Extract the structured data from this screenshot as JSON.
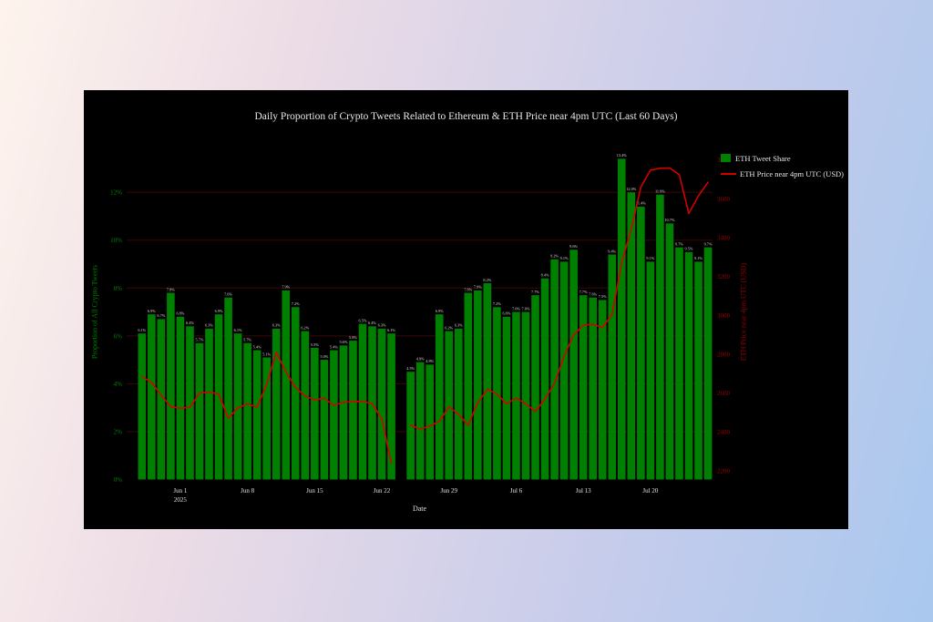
{
  "figure": {
    "background_panel_color": "#000000",
    "accent_green": "#008000",
    "accent_red_line": "#d40000",
    "accent_red_axis": "#9b0000",
    "grid_color": "#3a0606",
    "text_color": "#e8e8e8"
  },
  "chart_data": {
    "type": "bar+line",
    "title": "Daily Proportion of Crypto Tweets Related to Ethereum & ETH Price near 4pm UTC (Last 60 Days)",
    "xlabel": "Date",
    "ylabel_left": "Proportion of All Crypto Tweets",
    "ylabel_right": "ETH Price near 4pm UTC (USD)",
    "legend": [
      {
        "label": "ETH Tweet Share",
        "type": "bar",
        "color": "#008000"
      },
      {
        "label": "ETH Price near 4pm UTC (USD)",
        "type": "line",
        "color": "#d40000"
      }
    ],
    "legend_position": "top-right",
    "grid": {
      "on": true,
      "levels_pct": [
        2,
        4,
        6,
        8,
        10,
        12
      ]
    },
    "missing_day": "2025-06-24",
    "dates": [
      "2025-05-28",
      "2025-05-29",
      "2025-05-30",
      "2025-05-31",
      "2025-06-01",
      "2025-06-02",
      "2025-06-03",
      "2025-06-04",
      "2025-06-05",
      "2025-06-06",
      "2025-06-07",
      "2025-06-08",
      "2025-06-09",
      "2025-06-10",
      "2025-06-11",
      "2025-06-12",
      "2025-06-13",
      "2025-06-14",
      "2025-06-15",
      "2025-06-16",
      "2025-06-17",
      "2025-06-18",
      "2025-06-19",
      "2025-06-20",
      "2025-06-21",
      "2025-06-22",
      "2025-06-23",
      "2025-06-24",
      "2025-06-25",
      "2025-06-26",
      "2025-06-27",
      "2025-06-28",
      "2025-06-29",
      "2025-06-30",
      "2025-07-01",
      "2025-07-02",
      "2025-07-03",
      "2025-07-04",
      "2025-07-05",
      "2025-07-06",
      "2025-07-07",
      "2025-07-08",
      "2025-07-09",
      "2025-07-10",
      "2025-07-11",
      "2025-07-12",
      "2025-07-13",
      "2025-07-14",
      "2025-07-15",
      "2025-07-16",
      "2025-07-17",
      "2025-07-18",
      "2025-07-19",
      "2025-07-20",
      "2025-07-21",
      "2025-07-22",
      "2025-07-23",
      "2025-07-24",
      "2025-07-25",
      "2025-07-26"
    ],
    "series": [
      {
        "name": "ETH Tweet Share",
        "type": "bar",
        "color": "#008000",
        "unit": "%",
        "values": [
          6.1,
          6.9,
          6.7,
          7.8,
          6.8,
          6.4,
          5.7,
          6.3,
          6.9,
          7.6,
          6.1,
          5.7,
          5.4,
          5.1,
          6.3,
          7.9,
          7.2,
          6.2,
          5.5,
          5.0,
          5.4,
          5.6,
          5.8,
          6.5,
          6.4,
          6.3,
          6.1,
          null,
          4.5,
          4.9,
          4.8,
          6.9,
          6.2,
          6.3,
          7.8,
          7.9,
          8.2,
          7.2,
          6.8,
          7.0,
          7.0,
          7.7,
          8.4,
          9.2,
          9.1,
          9.6,
          7.7,
          7.6,
          7.5,
          9.4,
          13.4,
          12.0,
          11.4,
          9.1,
          11.9,
          10.7,
          9.7,
          9.5,
          9.1,
          9.7
        ]
      },
      {
        "name": "ETH Price near 4pm UTC (USD)",
        "type": "line",
        "color": "#d40000",
        "unit": "USD",
        "values": [
          2685,
          2655,
          2590,
          2530,
          2522,
          2527,
          2600,
          2605,
          2595,
          2470,
          2525,
          2545,
          2527,
          2645,
          2810,
          2710,
          2630,
          2585,
          2565,
          2573,
          2537,
          2553,
          2556,
          2558,
          2545,
          2467,
          2240,
          null,
          2435,
          2415,
          2430,
          2455,
          2530,
          2490,
          2435,
          2550,
          2620,
          2595,
          2545,
          2575,
          2545,
          2505,
          2570,
          2650,
          2790,
          2900,
          2950,
          2954,
          2938,
          3005,
          3270,
          3445,
          3660,
          3748,
          3757,
          3759,
          3725,
          3525,
          3615,
          3685
        ]
      }
    ],
    "x_ticks": [
      {
        "index": 4,
        "label": "Jun 1",
        "sublabel": "2025"
      },
      {
        "index": 11,
        "label": "Jun 8"
      },
      {
        "index": 18,
        "label": "Jun 15"
      },
      {
        "index": 25,
        "label": "Jun 22"
      },
      {
        "index": 32,
        "label": "Jun 29"
      },
      {
        "index": 39,
        "label": "Jul 6"
      },
      {
        "index": 46,
        "label": "Jul 13"
      },
      {
        "index": 53,
        "label": "Jul 20"
      }
    ],
    "y_left": {
      "ticks": [
        "0%",
        "2%",
        "4%",
        "6%",
        "8%",
        "10%",
        "12%"
      ],
      "values": [
        0,
        2,
        4,
        6,
        8,
        10,
        12
      ],
      "color": "#008000"
    },
    "y_right": {
      "ticks": [
        2200,
        2400,
        2600,
        2800,
        3000,
        3200,
        3400,
        3600,
        3800
      ],
      "color": "#9b0000"
    },
    "bar_value_labels": true
  }
}
